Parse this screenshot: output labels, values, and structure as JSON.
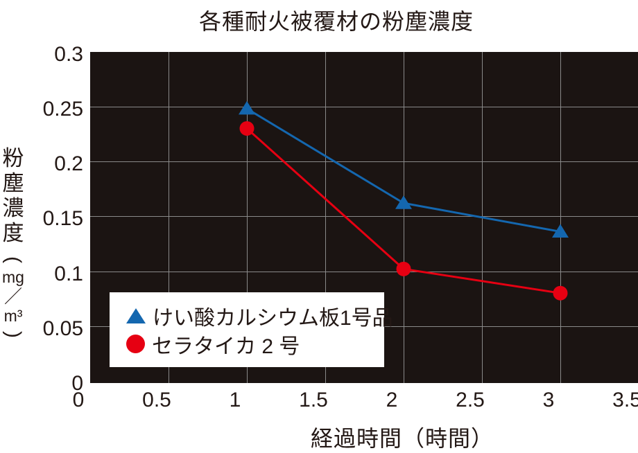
{
  "title": "各種耐火被覆材の粉塵濃度",
  "colors": {
    "ink": "#231815",
    "page_background": "#ffffff",
    "plot_background": "#1b1412",
    "gridline": "#8a8a8a",
    "legend_background": "#ffffff",
    "series_blue": "#1467af",
    "series_red": "#e60012"
  },
  "x_axis": {
    "title": "経過時間（時間）",
    "ticks": [
      "0",
      "0.5",
      "1",
      "1.5",
      "2",
      "2.5",
      "3",
      "3.5"
    ]
  },
  "y_axis": {
    "title": "粉塵濃度",
    "unit": {
      "open": "(",
      "numerator": "mg",
      "slash": "／",
      "denominator": "m³",
      "close": ")"
    },
    "ticks": [
      "0.3",
      "0.25",
      "0.2",
      "0.15",
      "0.1",
      "0.05",
      "0"
    ]
  },
  "legend": {
    "items": [
      {
        "label": "けい酸カルシウム板1号品",
        "marker": "triangle",
        "color": "#1467af"
      },
      {
        "label": "セラタイカ 2 号",
        "marker": "circle",
        "color": "#e60012"
      }
    ]
  },
  "chart_data": {
    "type": "line",
    "title": "各種耐火被覆材の粉塵濃度",
    "xlabel": "経過時間（時間）",
    "ylabel": "粉塵濃度（mg/m³）",
    "x": [
      1,
      2,
      3
    ],
    "series": [
      {
        "name": "けい酸カルシウム板1号品",
        "marker": "triangle",
        "color": "#1467af",
        "values": [
          0.248,
          0.162,
          0.136
        ]
      },
      {
        "name": "セラタイカ 2 号",
        "marker": "circle",
        "color": "#e60012",
        "values": [
          0.23,
          0.102,
          0.08
        ]
      }
    ],
    "xlim": [
      0,
      3.5
    ],
    "ylim": [
      0,
      0.3
    ],
    "x_tick_step": 0.5,
    "y_tick_step": 0.05,
    "grid": true,
    "plot_background_dark": true,
    "legend_position": "lower-left"
  }
}
